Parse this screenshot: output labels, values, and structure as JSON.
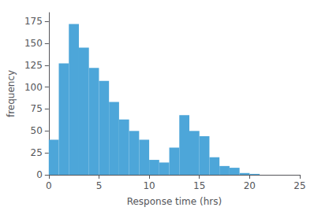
{
  "chart_data": {
    "type": "histogram",
    "bins": [
      0,
      1,
      2,
      3,
      4,
      5,
      6,
      7,
      8,
      9,
      10,
      11,
      12,
      13,
      14,
      15,
      16,
      17,
      18,
      19,
      20,
      21,
      22,
      23,
      24,
      25
    ],
    "values": [
      40,
      127,
      172,
      145,
      122,
      107,
      83,
      63,
      50,
      40,
      17,
      14,
      31,
      68,
      50,
      44,
      20,
      10,
      8,
      2,
      1,
      0,
      0,
      0,
      0
    ],
    "color": "#4da6d9",
    "xlabel": "Response time (hrs)",
    "ylabel": "frequency",
    "xlim": [
      0,
      25
    ],
    "ylim": [
      0,
      185
    ],
    "xticks": [
      0,
      5,
      10,
      15,
      20,
      25
    ],
    "yticks": [
      0,
      25,
      50,
      75,
      100,
      125,
      150,
      175
    ],
    "grid": false
  }
}
